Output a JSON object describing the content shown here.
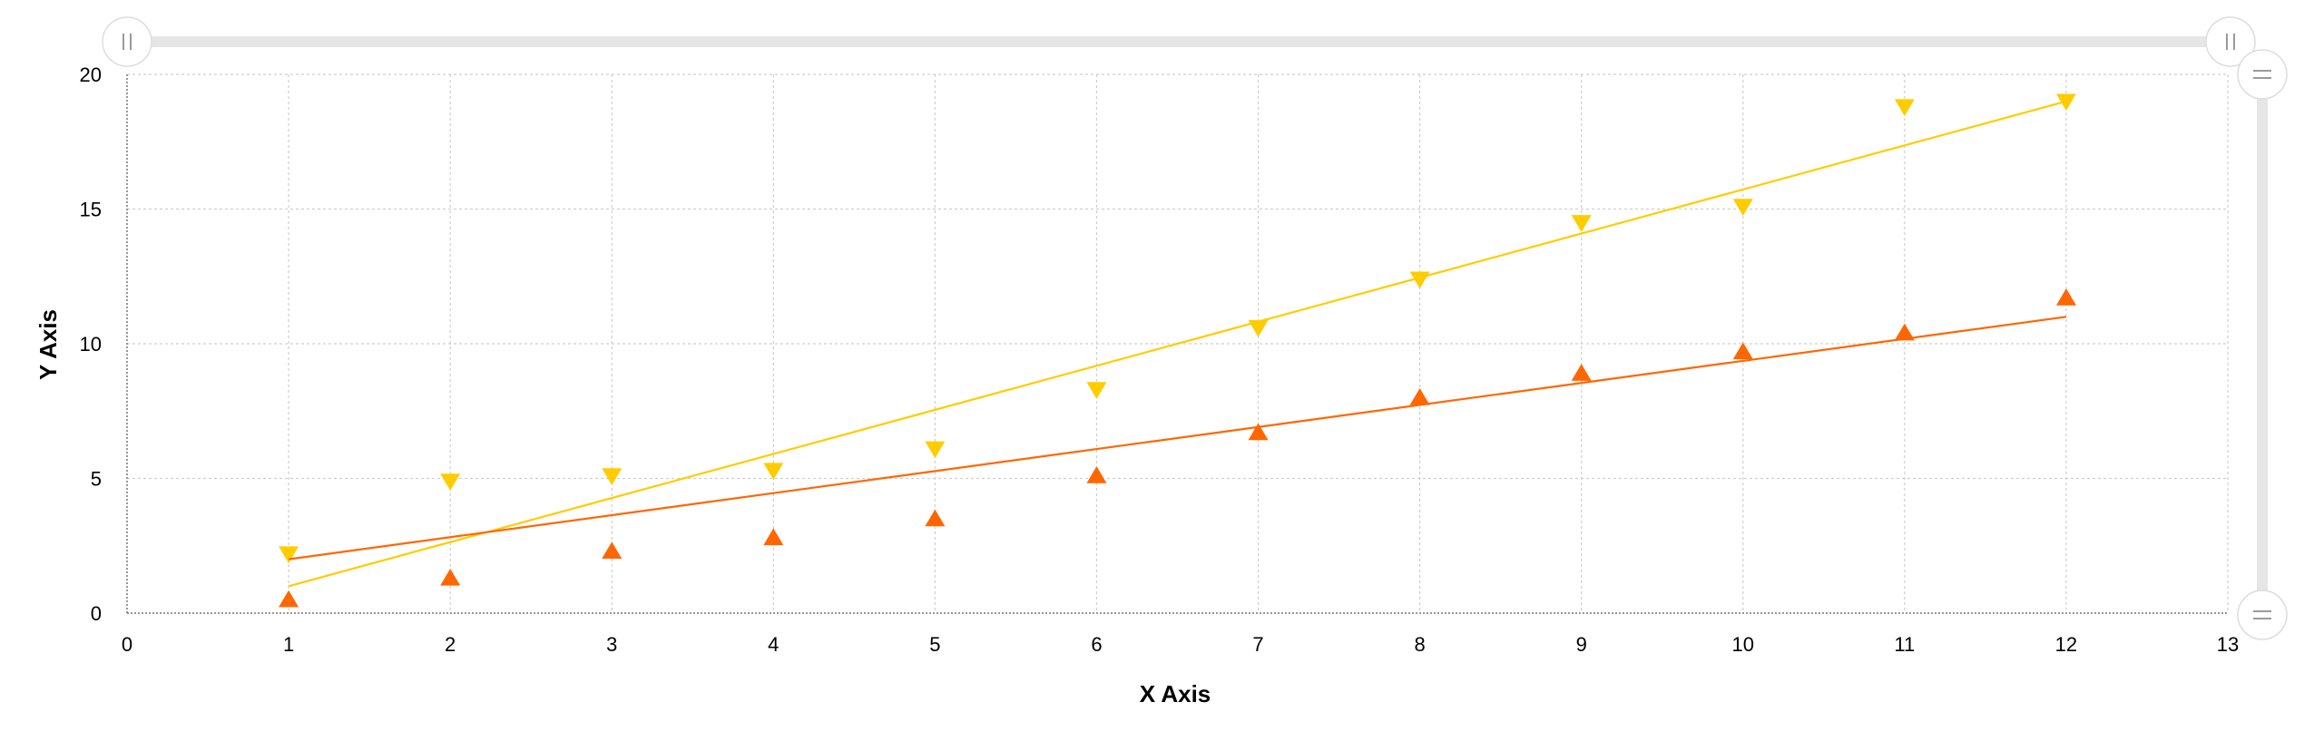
{
  "chart_data": {
    "type": "scatter",
    "title": "",
    "xlabel": "X Axis",
    "ylabel": "Y Axis",
    "xlim": [
      0,
      13
    ],
    "ylim": [
      0,
      20
    ],
    "x_ticks": [
      0,
      1,
      2,
      3,
      4,
      5,
      6,
      7,
      8,
      9,
      10,
      11,
      12,
      13
    ],
    "y_ticks": [
      0,
      5,
      10,
      15,
      20
    ],
    "grid": true,
    "legend": "none",
    "x_scrollbar": true,
    "y_scrollbar": true,
    "series": [
      {
        "marker": "triangle-down",
        "color": "#FFCC00",
        "x": [
          1,
          2,
          3,
          4,
          5,
          6,
          7,
          8,
          9,
          10,
          11,
          12
        ],
        "y": [
          2.2,
          4.9,
          5.1,
          5.3,
          6.1,
          8.3,
          10.6,
          12.4,
          14.5,
          15.1,
          18.8,
          19.0
        ],
        "trendline": {
          "x": [
            1,
            12
          ],
          "y": [
            1.0,
            19.0
          ]
        }
      },
      {
        "marker": "triangle-up",
        "color": "#FF6600",
        "x": [
          1,
          2,
          3,
          4,
          5,
          6,
          7,
          8,
          9,
          10,
          11,
          12
        ],
        "y": [
          0.5,
          1.3,
          2.3,
          2.8,
          3.5,
          5.1,
          6.7,
          8.0,
          8.9,
          9.7,
          10.4,
          11.7
        ],
        "trendline": {
          "x": [
            1,
            12
          ],
          "y": [
            2.0,
            11.0
          ]
        }
      }
    ]
  }
}
